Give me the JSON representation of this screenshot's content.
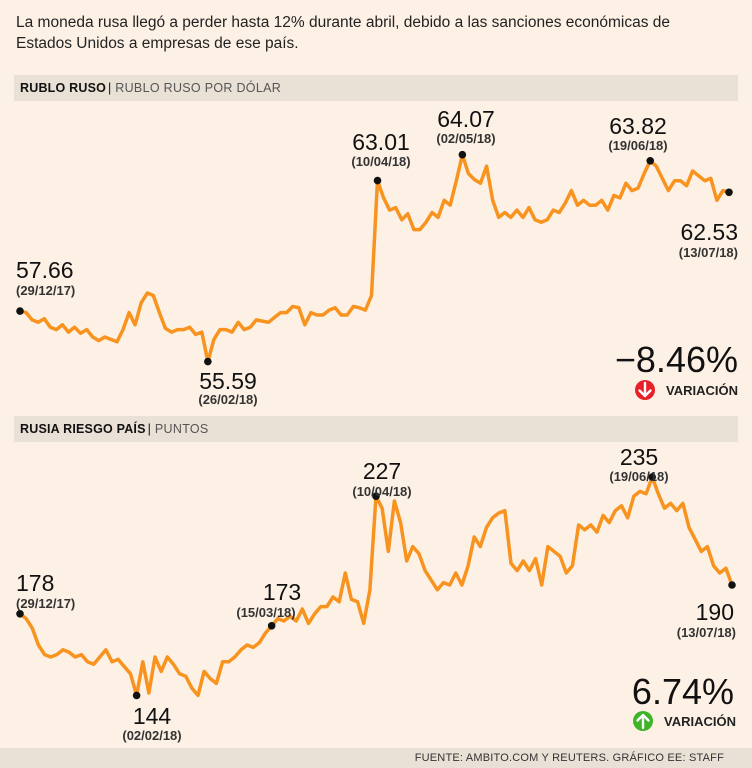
{
  "intro_text": "La moneda rusa llegó a perder hasta 12% durante abril, debido a las sanciones económicas de Estados Unidos a empresas de ese país.",
  "source": "FUENTE: AMBITO.COM Y REUTERS. GRÁFICO EE: STAFF",
  "colors": {
    "line": "#f7931e",
    "down": "#e8202a",
    "up": "#3fb428",
    "background": "#fdf1e6",
    "bar": "#e9e0d6"
  },
  "chart_data": [
    {
      "type": "line",
      "title": "RUBLO RUSO",
      "subtitle": "RUBLO RUSO POR DÓLAR",
      "x_start": "29/12/17",
      "x_end": "13/07/18",
      "ylim": [
        55.0,
        65.0
      ],
      "values": [
        57.66,
        57.6,
        57.3,
        57.2,
        57.35,
        57.0,
        56.9,
        57.1,
        56.8,
        57.0,
        56.75,
        56.9,
        56.6,
        56.45,
        56.6,
        56.5,
        56.4,
        56.9,
        57.6,
        57.1,
        58.0,
        58.4,
        58.3,
        57.6,
        56.95,
        56.8,
        56.9,
        56.9,
        57.0,
        56.7,
        56.8,
        55.59,
        56.5,
        56.9,
        56.9,
        56.8,
        57.2,
        56.9,
        57.0,
        57.3,
        57.25,
        57.2,
        57.4,
        57.6,
        57.6,
        57.85,
        57.8,
        57.1,
        57.6,
        57.5,
        57.5,
        57.7,
        57.8,
        57.5,
        57.5,
        57.85,
        57.8,
        57.7,
        58.3,
        63.01,
        62.3,
        61.8,
        61.9,
        61.4,
        61.65,
        61.0,
        61.0,
        61.3,
        61.7,
        61.5,
        62.2,
        62.0,
        63.0,
        64.07,
        63.3,
        63.05,
        62.9,
        63.6,
        62.2,
        61.5,
        61.7,
        61.5,
        61.8,
        61.5,
        61.9,
        61.4,
        61.3,
        61.4,
        61.8,
        61.7,
        62.1,
        62.6,
        62.0,
        62.2,
        62.0,
        62.0,
        62.2,
        61.8,
        62.4,
        62.3,
        62.9,
        62.6,
        62.7,
        63.3,
        63.82,
        63.6,
        63.1,
        62.6,
        63.0,
        63.0,
        62.8,
        63.4,
        63.2,
        63.0,
        63.1,
        62.2,
        62.6,
        62.53
      ],
      "annotations": [
        {
          "value": "57.66",
          "date": "(29/12/17)"
        },
        {
          "value": "55.59",
          "date": "(26/02/18)"
        },
        {
          "value": "63.01",
          "date": "(10/04/18)"
        },
        {
          "value": "64.07",
          "date": "(02/05/18)"
        },
        {
          "value": "63.82",
          "date": "(19/06/18)"
        },
        {
          "value": "62.53",
          "date": "(13/07/18)"
        }
      ],
      "variation": {
        "value": "−8.46%",
        "label": "VARIACIÓN",
        "direction": "down"
      }
    },
    {
      "type": "line",
      "title": "RUSIA RIESGO PAÍS",
      "subtitle": "PUNTOS",
      "x_start": "29/12/17",
      "x_end": "13/07/18",
      "ylim": [
        140,
        240
      ],
      "values": [
        178,
        176,
        172,
        165,
        161,
        160,
        161,
        163,
        162,
        160,
        161,
        158,
        157,
        160,
        163,
        158,
        159,
        156,
        153,
        144,
        158,
        145,
        160,
        154,
        160,
        157,
        153,
        152,
        147,
        144,
        154,
        151,
        149,
        158,
        158,
        160,
        163,
        165,
        164,
        166,
        170,
        173,
        176,
        175,
        177,
        175,
        180,
        174,
        178,
        181,
        181,
        185,
        183,
        195,
        184,
        183,
        174,
        188,
        227,
        222,
        204,
        225,
        216,
        200,
        206,
        203,
        196,
        192,
        188,
        191,
        190,
        195,
        190,
        198,
        210,
        206,
        214,
        218,
        220,
        221,
        199,
        196,
        200,
        196,
        201,
        190,
        206,
        204,
        202,
        195,
        198,
        215,
        213,
        215,
        212,
        219,
        216,
        221,
        223,
        218,
        227,
        229,
        228,
        235,
        228,
        222,
        224,
        221,
        224,
        214,
        209,
        204,
        206,
        198,
        195,
        197,
        190
      ],
      "annotations": [
        {
          "value": "178",
          "date": "(29/12/17)"
        },
        {
          "value": "144",
          "date": "(02/02/18)"
        },
        {
          "value": "173",
          "date": "(15/03/18)"
        },
        {
          "value": "227",
          "date": "(10/04/18)"
        },
        {
          "value": "235",
          "date": "(19/06/18)"
        },
        {
          "value": "190",
          "date": "(13/07/18)"
        }
      ],
      "variation": {
        "value": "6.74%",
        "label": "VARIACIÓN",
        "direction": "up"
      }
    }
  ]
}
